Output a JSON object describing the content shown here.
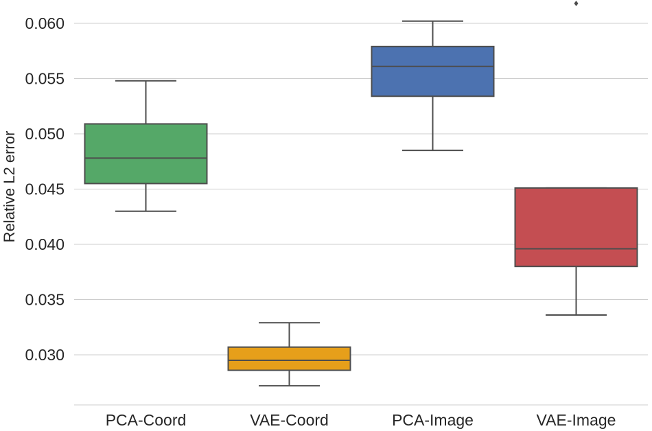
{
  "chart_data": {
    "type": "boxplot",
    "title": "",
    "xlabel": "",
    "ylabel": "Relative L2 error",
    "ylim": [
      0.0265,
      0.0625
    ],
    "yticks": [
      "0.030",
      "0.035",
      "0.040",
      "0.045",
      "0.050",
      "0.055",
      "0.060"
    ],
    "grid": "horizontal",
    "legend": "none",
    "categories": [
      "PCA-Coord",
      "VAE-Coord",
      "PCA-Image",
      "VAE-Image"
    ],
    "boxes": [
      {
        "category": "PCA-Coord",
        "color": "#55a868",
        "whisker_low": 0.043,
        "q1": 0.0455,
        "median": 0.0478,
        "q3": 0.0509,
        "whisker_high": 0.0548,
        "outliers": []
      },
      {
        "category": "VAE-Coord",
        "color": "#e69f1a",
        "whisker_low": 0.0272,
        "q1": 0.0286,
        "median": 0.0295,
        "q3": 0.0307,
        "whisker_high": 0.0329,
        "outliers": []
      },
      {
        "category": "PCA-Image",
        "color": "#4c72b0",
        "whisker_low": 0.0485,
        "q1": 0.0534,
        "median": 0.0561,
        "q3": 0.0579,
        "whisker_high": 0.0602,
        "outliers": []
      },
      {
        "category": "VAE-Image",
        "color": "#c44e52",
        "whisker_low": 0.0336,
        "q1": 0.038,
        "median": 0.0396,
        "q3": 0.0451,
        "whisker_high": 0.0451,
        "outliers": [
          0.0618
        ]
      }
    ]
  }
}
